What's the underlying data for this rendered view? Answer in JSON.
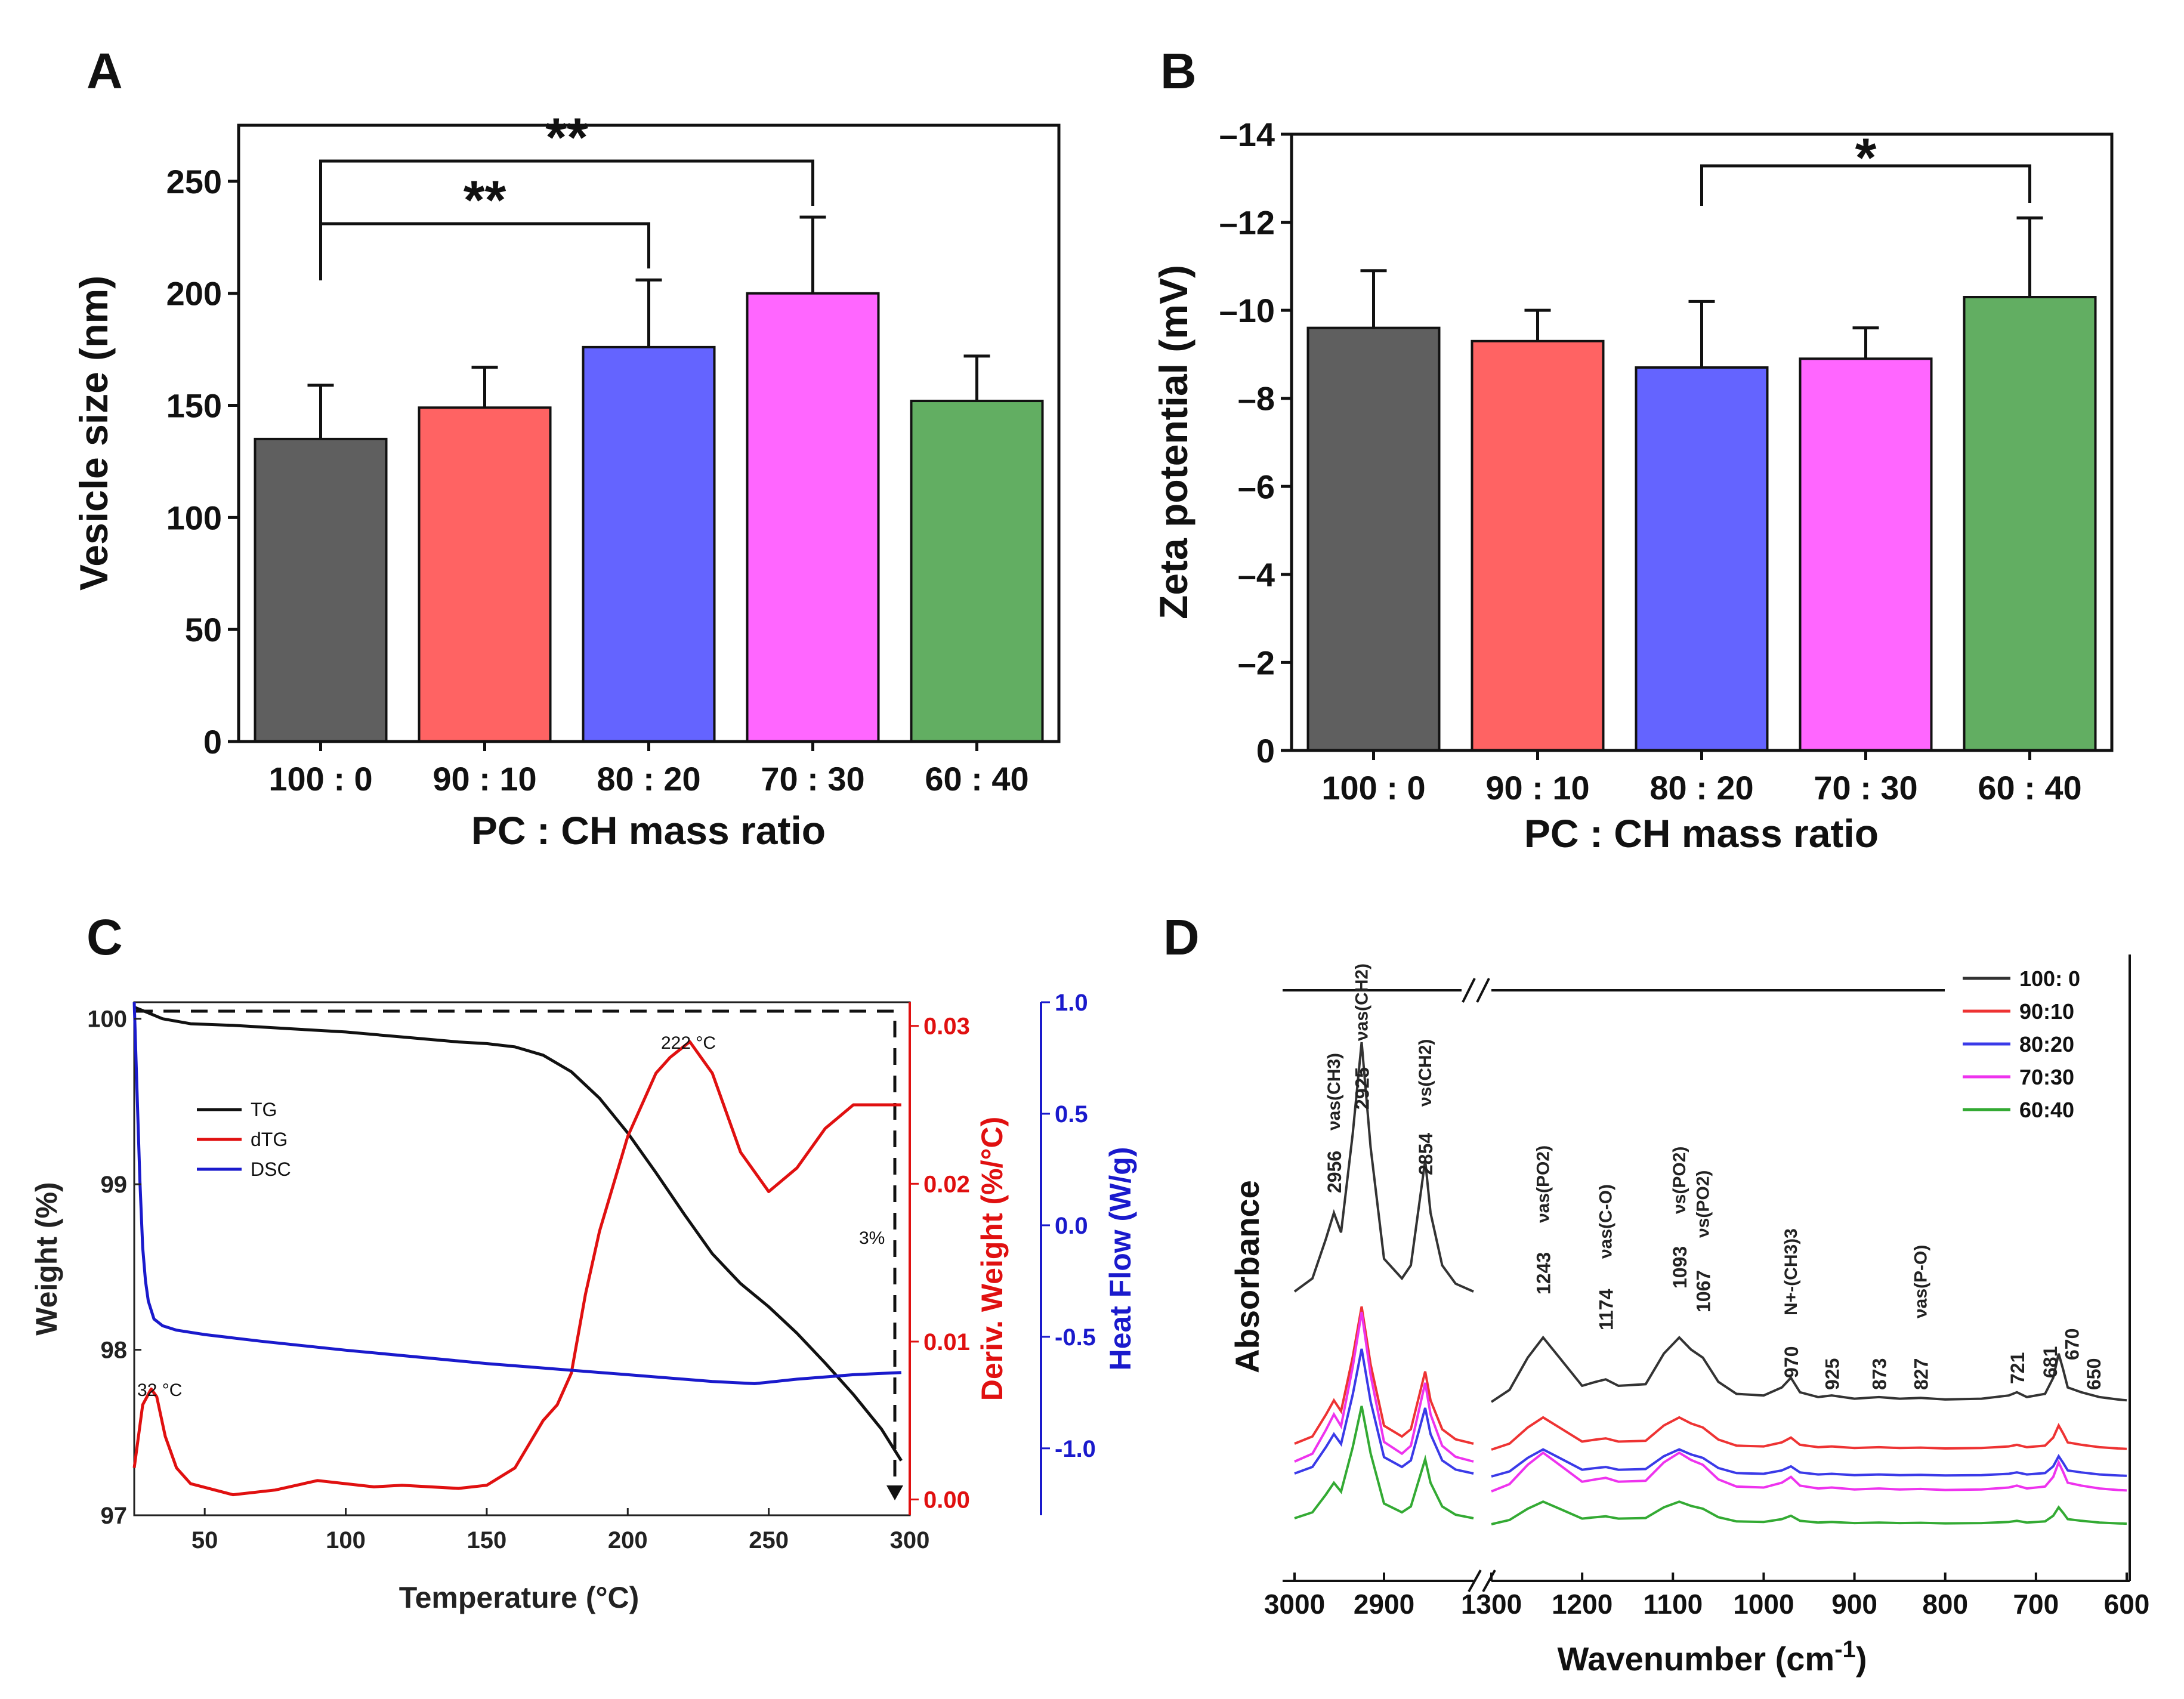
{
  "chart_data": [
    {
      "panel": "A",
      "type": "bar",
      "categories": [
        "100 : 0",
        "90 : 10",
        "80 : 20",
        "70 : 30",
        "60 : 40"
      ],
      "values": [
        135,
        149,
        176,
        200,
        152
      ],
      "errors": [
        24,
        18,
        30,
        34,
        20
      ],
      "colors": [
        "#5f5f5f",
        "#ff6363",
        "#6464ff",
        "#ff66ff",
        "#62ae62"
      ],
      "xlabel": "PC : CH mass ratio",
      "ylabel": "Vesicle size (nm)",
      "ylim": [
        0,
        275
      ],
      "yticks": [
        0,
        50,
        100,
        150,
        200,
        250
      ],
      "significance": [
        {
          "from": "100 : 0",
          "to": "80 : 20",
          "label": "**"
        },
        {
          "from": "100 : 0",
          "to": "70 : 30",
          "label": "**"
        }
      ]
    },
    {
      "panel": "B",
      "type": "bar",
      "categories": [
        "100 : 0",
        "90 : 10",
        "80 : 20",
        "70 : 30",
        "60 : 40"
      ],
      "values": [
        -9.6,
        -9.3,
        -8.7,
        -8.9,
        -10.3
      ],
      "errors": [
        1.3,
        0.7,
        1.5,
        0.7,
        1.8
      ],
      "colors": [
        "#5f5f5f",
        "#ff6363",
        "#6464ff",
        "#ff66ff",
        "#62ae62"
      ],
      "xlabel": "PC : CH mass ratio",
      "ylabel": "Zeta potential (mV)",
      "ylim": [
        0,
        -14
      ],
      "yticks": [
        0,
        -2,
        -4,
        -6,
        -8,
        -10,
        -12,
        -14
      ],
      "significance": [
        {
          "from": "80 : 20",
          "to": "60 : 40",
          "label": "*"
        }
      ]
    },
    {
      "panel": "C",
      "type": "line",
      "xlabel": "Temperature (°C)",
      "xlim": [
        25,
        300
      ],
      "xticks": [
        50,
        100,
        150,
        200,
        250,
        300
      ],
      "y_left": {
        "label": "Weight (%)",
        "ticks": [
          97,
          98,
          99,
          100
        ],
        "lim": [
          97,
          100.1
        ]
      },
      "y_right1": {
        "label": "Deriv. Weight (%/°C)",
        "ticks": [
          "0.00",
          "0.01",
          "0.02",
          "0.03"
        ],
        "lim": [
          -0.001,
          0.0315
        ],
        "color": "#e01010"
      },
      "y_right2": {
        "label": "Heat Flow (W/g)",
        "ticks": [
          "-1.0",
          "-0.5",
          "0.0",
          "0.5",
          "1.0"
        ],
        "lim": [
          -1.3,
          1.0
        ],
        "color": "#1a1acc"
      },
      "series": [
        {
          "name": "TG",
          "axis": "left",
          "color": "#111111",
          "x": [
            25,
            28,
            35,
            45,
            60,
            80,
            100,
            120,
            140,
            150,
            160,
            170,
            180,
            190,
            200,
            210,
            220,
            230,
            240,
            250,
            260,
            270,
            280,
            290,
            297
          ],
          "y": [
            100.07,
            100.05,
            100.0,
            99.97,
            99.96,
            99.94,
            99.92,
            99.89,
            99.86,
            99.85,
            99.83,
            99.78,
            99.68,
            99.52,
            99.31,
            99.07,
            98.82,
            98.58,
            98.4,
            98.26,
            98.1,
            97.92,
            97.73,
            97.52,
            97.33
          ]
        },
        {
          "name": "dTG",
          "axis": "right1",
          "color": "#e01010",
          "x": [
            25,
            28,
            31,
            33,
            36,
            40,
            45,
            60,
            75,
            90,
            100,
            110,
            120,
            140,
            150,
            160,
            170,
            175,
            180,
            185,
            190,
            200,
            210,
            215,
            222,
            230,
            240,
            250,
            260,
            270,
            280,
            290,
            297
          ],
          "y": [
            0.002,
            0.006,
            0.007,
            0.0065,
            0.004,
            0.002,
            0.001,
            0.0003,
            0.0006,
            0.0012,
            0.001,
            0.0008,
            0.0009,
            0.0007,
            0.0009,
            0.002,
            0.005,
            0.006,
            0.008,
            0.013,
            0.017,
            0.023,
            0.027,
            0.028,
            0.029,
            0.027,
            0.022,
            0.0195,
            0.021,
            0.0235,
            0.025,
            0.025,
            0.025
          ]
        },
        {
          "name": "DSC",
          "axis": "right2",
          "color": "#1a1acc",
          "x": [
            25,
            26,
            27,
            28,
            29,
            30,
            32,
            35,
            40,
            50,
            70,
            100,
            150,
            200,
            230,
            245,
            260,
            280,
            297
          ],
          "y": [
            1.0,
            0.6,
            0.2,
            -0.1,
            -0.25,
            -0.34,
            -0.42,
            -0.45,
            -0.47,
            -0.49,
            -0.52,
            -0.56,
            -0.62,
            -0.67,
            -0.7,
            -0.71,
            -0.69,
            -0.67,
            -0.66
          ]
        }
      ],
      "annotations": [
        "222 °C",
        "32 °C",
        "3%"
      ],
      "legend": [
        "TG",
        "dTG",
        "DSC"
      ]
    },
    {
      "panel": "D",
      "type": "line",
      "xlabel": "Wavenumber (cm-1)",
      "ylabel": "Absorbance",
      "xticks_left": [
        3000,
        2900
      ],
      "xticks_right": [
        1300,
        1200,
        1100,
        1000,
        900,
        800,
        700,
        600
      ],
      "break_between": [
        2800,
        1300
      ],
      "legend": [
        "100: 0",
        "90:10",
        "80:20",
        "70:30",
        "60:40"
      ],
      "colors": [
        "#333333",
        "#ee3333",
        "#3a3ae8",
        "#ee33ee",
        "#33aa33"
      ],
      "peaks": [
        "2956",
        "2925",
        "2854",
        "1243",
        "1174",
        "1093",
        "1067",
        "970",
        "925",
        "873",
        "827",
        "721",
        "681",
        "670",
        "650"
      ],
      "assignments": [
        "νas(CH3)",
        "νas(CH2)",
        "νs(CH2)",
        "νas(PO2)",
        "νas(C-O)",
        "νs(PO2)",
        "νs(PO2)",
        "N+-(CH3)3",
        "νas(P-O)"
      ]
    }
  ],
  "panel_labels": [
    "A",
    "B",
    "C",
    "D"
  ],
  "panel_c_peak_labels": [
    "222 °C",
    "32 °C",
    "3%"
  ],
  "panel_d_unit_superscript": "-1",
  "panel_d_unit_text": "Wavenumber (cm",
  "panel_d_unit_close": ")"
}
